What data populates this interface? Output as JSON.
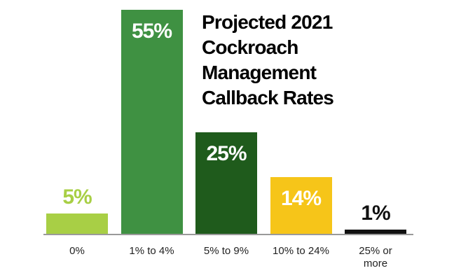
{
  "chart_data": {
    "type": "bar",
    "title": "Projected 2021 Cockroach Management Callback Rates",
    "categories": [
      "0%",
      "1% to 4%",
      "5% to 9%",
      "10% to 24%",
      "25% or more"
    ],
    "values": [
      5,
      55,
      25,
      14,
      1
    ],
    "value_labels": [
      "5%",
      "55%",
      "25%",
      "14%",
      "1%"
    ],
    "colors": [
      "#a8cf45",
      "#3f9142",
      "#1f5b1c",
      "#f6c519",
      "#111111"
    ]
  }
}
